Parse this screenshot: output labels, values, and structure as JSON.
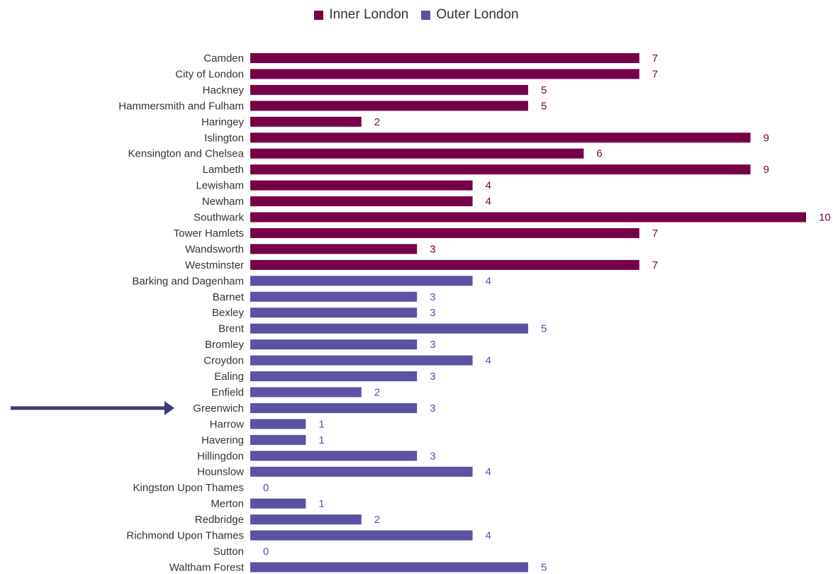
{
  "chart_data": {
    "type": "bar",
    "orientation": "horizontal",
    "title": "",
    "xlabel": "",
    "ylabel": "",
    "xlim": [
      0,
      10
    ],
    "grid": false,
    "legend_position": "top-center",
    "series": [
      {
        "name": "Inner London",
        "color": "#750046",
        "categories": [
          "Camden",
          "City of London",
          "Hackney",
          "Hammersmith and Fulham",
          "Haringey",
          "Islington",
          "Kensington and Chelsea",
          "Lambeth",
          "Lewisham",
          "Newham",
          "Southwark",
          "Tower Hamlets",
          "Wandsworth",
          "Westminster"
        ],
        "values": [
          7,
          7,
          5,
          5,
          2,
          9,
          6,
          9,
          4,
          4,
          10,
          7,
          3,
          7
        ]
      },
      {
        "name": "Outer London",
        "color": "#5b51a5",
        "categories": [
          "Barking and Dagenham",
          "Barnet",
          "Bexley",
          "Brent",
          "Bromley",
          "Croydon",
          "Ealing",
          "Enfield",
          "Greenwich",
          "Harrow",
          "Havering",
          "Hillingdon",
          "Hounslow",
          "Kingston Upon Thames",
          "Merton",
          "Redbridge",
          "Richmond Upon Thames",
          "Sutton",
          "Waltham Forest"
        ],
        "values": [
          4,
          3,
          3,
          5,
          3,
          4,
          3,
          2,
          3,
          1,
          1,
          3,
          4,
          0,
          1,
          2,
          4,
          0,
          5
        ]
      }
    ],
    "annotations": [
      {
        "type": "arrow",
        "points_to": "Greenwich",
        "color": "#3d3a7a"
      }
    ]
  }
}
